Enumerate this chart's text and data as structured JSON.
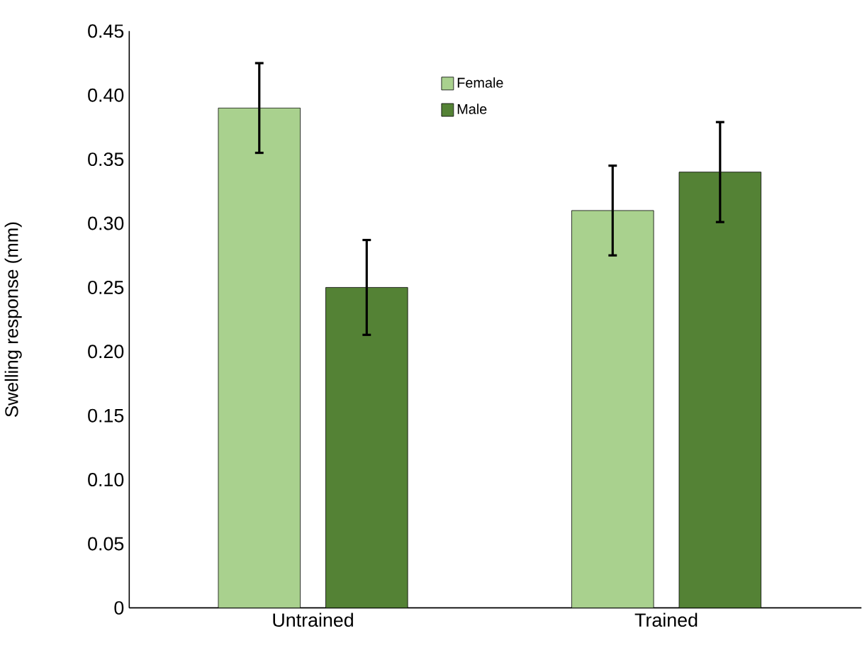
{
  "chart_data": {
    "type": "bar",
    "ylabel": "Swelling response (mm)",
    "categories": [
      "Untrained",
      "Trained"
    ],
    "series": [
      {
        "name": "Female",
        "color": "#a9d18e",
        "values": [
          0.39,
          0.31
        ],
        "errors": [
          0.035,
          0.035
        ]
      },
      {
        "name": "Male",
        "color": "#548235",
        "values": [
          0.25,
          0.34
        ],
        "errors": [
          0.037,
          0.039
        ]
      }
    ],
    "ylim": [
      0,
      0.45
    ],
    "yticks": [
      0,
      {
        "value": 0.05,
        "label": "0.05"
      },
      {
        "value": 0.1,
        "label": "0.10"
      },
      {
        "value": 0.15,
        "label": "0.15"
      },
      {
        "value": 0.2,
        "label": "0.20"
      },
      {
        "value": 0.25,
        "label": "0.25"
      },
      {
        "value": 0.3,
        "label": "0.30"
      },
      {
        "value": 0.35,
        "label": "0.35"
      },
      {
        "value": 0.4,
        "label": "0.40"
      },
      {
        "value": 0.45,
        "label": "0.45"
      }
    ],
    "legend": "top",
    "grid": false
  }
}
